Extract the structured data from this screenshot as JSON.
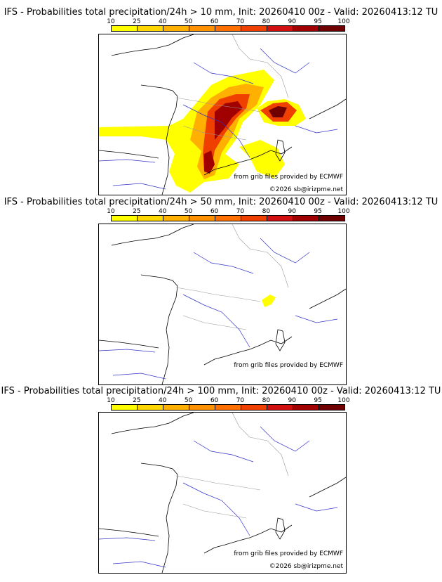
{
  "colors": {
    "scale": [
      "#ffff00",
      "#ffd700",
      "#ffb000",
      "#ff9000",
      "#ff7000",
      "#f04000",
      "#d01010",
      "#a00000",
      "#700000",
      "#400000"
    ],
    "river": "#3333cc",
    "border": "#999999",
    "coast": "#000000"
  },
  "scale_ticks": [
    "10",
    "25",
    "40",
    "50",
    "60",
    "70",
    "80",
    "90",
    "95",
    "100"
  ],
  "panels": [
    {
      "title": "IFS - Probabilities total precipitation/24h > 10 mm, Init: 20260410 00z - Valid: 20260413:12 TU",
      "credit_source": "from grib files provided by ECMWF",
      "credit_copyright": "©2026 sb@irizpme.net"
    },
    {
      "title": "IFS - Probabilities total precipitation/24h > 50 mm, Init: 20260410 00z - Valid: 20260413:12 TU",
      "credit_source": "from grib files provided by ECMWF",
      "credit_copyright": ""
    },
    {
      "title": "IFS - Probabilities total precipitation/24h > 100 mm, Init: 20260410 00z - Valid: 20260413:12 TU",
      "credit_source": "from grib files provided by ECMWF",
      "credit_copyright": "©2026 sb@irizpme.net"
    }
  ]
}
